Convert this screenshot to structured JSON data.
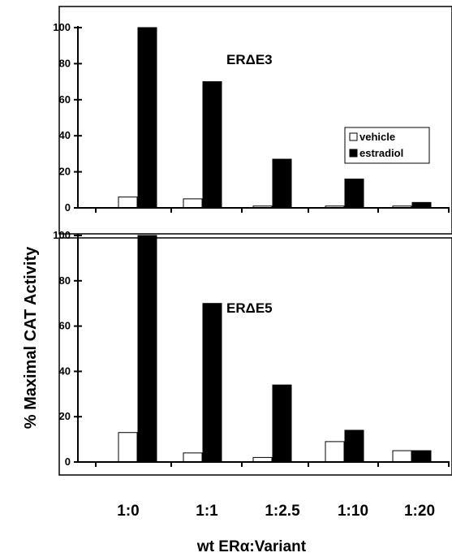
{
  "figure": {
    "ylabel": "% Maximal CAT Activity",
    "xlabel": "wt ERα:Variant"
  },
  "legend": {
    "entries": [
      {
        "label": "vehicle",
        "color": "#ffffff"
      },
      {
        "label": "estradiol",
        "color": "#000000"
      }
    ]
  },
  "chart_data": [
    {
      "type": "bar",
      "title": "ERΔE3",
      "categories": [
        "1:0",
        "1:1",
        "1:2.5",
        "1:10",
        "1:20"
      ],
      "series": [
        {
          "name": "vehicle",
          "color": "#ffffff",
          "values": [
            6,
            5,
            1,
            1,
            1
          ]
        },
        {
          "name": "estradiol",
          "color": "#000000",
          "values": [
            100,
            70,
            27,
            16,
            3
          ]
        }
      ],
      "yticks": [
        0,
        20,
        40,
        60,
        80,
        100
      ],
      "ylim": [
        0,
        100
      ],
      "legend_position": "right"
    },
    {
      "type": "bar",
      "title": "ERΔE5",
      "categories": [
        "1:0",
        "1:1",
        "1:2.5",
        "1:10",
        "1:20"
      ],
      "series": [
        {
          "name": "vehicle",
          "color": "#ffffff",
          "values": [
            13,
            4,
            2,
            9,
            5
          ]
        },
        {
          "name": "estradiol",
          "color": "#000000",
          "values": [
            100,
            70,
            34,
            14,
            5
          ]
        }
      ],
      "yticks": [
        0,
        20,
        40,
        60,
        80,
        100
      ],
      "ylim": [
        0,
        100
      ]
    }
  ]
}
